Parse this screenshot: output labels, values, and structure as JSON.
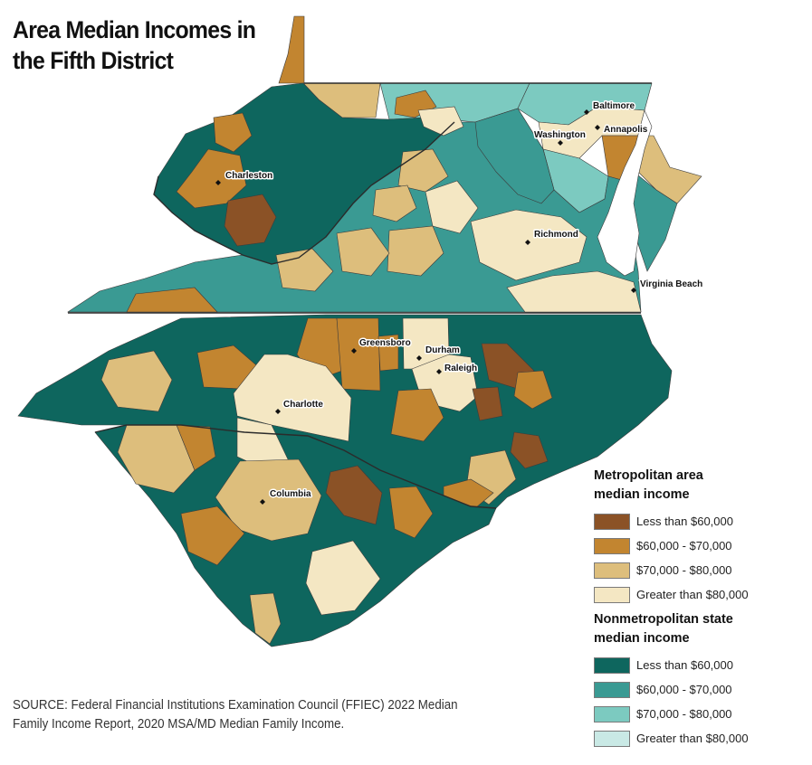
{
  "title": {
    "line1": "Area Median Incomes in",
    "line2": "the Fifth District"
  },
  "colors": {
    "metro_lt60": "#8B5226",
    "metro_60_70": "#C28530",
    "metro_70_80": "#DDBE7C",
    "metro_gt80": "#F4E7C3",
    "nonmetro_lt60": "#0E665E",
    "nonmetro_60_70": "#3A9A93",
    "nonmetro_70_80": "#7CCAC0",
    "nonmetro_gt80": "#C9E9E5",
    "boundary": "#3c3c3c"
  },
  "cities": [
    {
      "name": "Baltimore"
    },
    {
      "name": "Washington"
    },
    {
      "name": "Annapolis"
    },
    {
      "name": "Charleston"
    },
    {
      "name": "Richmond"
    },
    {
      "name": "Virginia Beach"
    },
    {
      "name": "Greensboro"
    },
    {
      "name": "Durham"
    },
    {
      "name": "Raleigh"
    },
    {
      "name": "Charlotte"
    },
    {
      "name": "Columbia"
    }
  ],
  "legend": {
    "metro_heading": [
      "Metropolitan area",
      "median income"
    ],
    "metro_items": [
      {
        "label": "Less than $60,000",
        "color": "#8B5226"
      },
      {
        "label": "$60,000 - $70,000",
        "color": "#C28530"
      },
      {
        "label": "$70,000 - $80,000",
        "color": "#DDBE7C"
      },
      {
        "label": "Greater than $80,000",
        "color": "#F4E7C3"
      }
    ],
    "nonmetro_heading": [
      "Nonmetropolitan state",
      "median income"
    ],
    "nonmetro_items": [
      {
        "label": "Less than $60,000",
        "color": "#0E665E"
      },
      {
        "label": "$60,000 - $70,000",
        "color": "#3A9A93"
      },
      {
        "label": "$70,000 - $80,000",
        "color": "#7CCAC0"
      },
      {
        "label": "Greater than $80,000",
        "color": "#C9E9E5"
      }
    ]
  },
  "source": {
    "line1": "SOURCE: Federal Financial Institutions Examination Council (FFIEC) 2022 Median",
    "line2": "Family Income Report, 2020 MSA/MD Median Family Income."
  }
}
